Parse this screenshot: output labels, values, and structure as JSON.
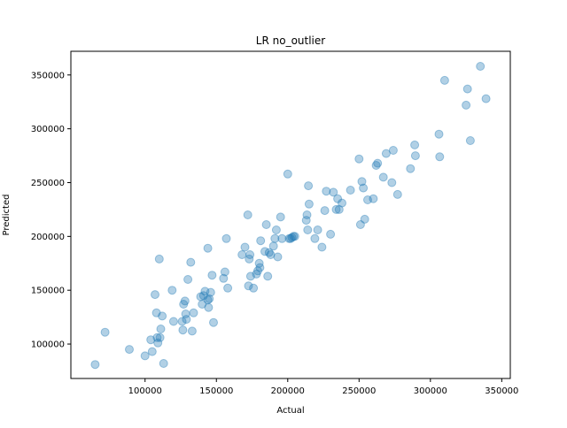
{
  "chart_data": {
    "type": "scatter",
    "title": "LR no_outlier",
    "xlabel": "Actual",
    "ylabel": "Predicted",
    "xlim": [
      48000,
      356000
    ],
    "ylim": [
      68000,
      372000
    ],
    "xticks": [
      100000,
      150000,
      200000,
      250000,
      300000,
      350000
    ],
    "yticks": [
      100000,
      150000,
      200000,
      250000,
      300000,
      350000
    ],
    "xtick_labels": [
      "100000",
      "150000",
      "200000",
      "250000",
      "300000",
      "350000"
    ],
    "ytick_labels": [
      "100000",
      "150000",
      "200000",
      "250000",
      "300000",
      "350000"
    ],
    "grid": false,
    "marker_color": "#1f77b4",
    "marker_alpha": 0.35,
    "points": [
      [
        65000,
        81000
      ],
      [
        72000,
        111000
      ],
      [
        89000,
        95000
      ],
      [
        100000,
        89000
      ],
      [
        104000,
        104000
      ],
      [
        105000,
        93000
      ],
      [
        107000,
        146000
      ],
      [
        108000,
        129000
      ],
      [
        108500,
        106000
      ],
      [
        109000,
        101000
      ],
      [
        110000,
        179000
      ],
      [
        110500,
        106000
      ],
      [
        111000,
        114000
      ],
      [
        112000,
        126000
      ],
      [
        113000,
        82000
      ],
      [
        119000,
        150000
      ],
      [
        120000,
        121000
      ],
      [
        126000,
        121000
      ],
      [
        126500,
        113000
      ],
      [
        127000,
        137000
      ],
      [
        128000,
        140000
      ],
      [
        128500,
        128000
      ],
      [
        129000,
        123000
      ],
      [
        130000,
        160000
      ],
      [
        132000,
        176000
      ],
      [
        133000,
        112000
      ],
      [
        134000,
        129000
      ],
      [
        139000,
        144000
      ],
      [
        140000,
        137000
      ],
      [
        141000,
        145000
      ],
      [
        142000,
        149000
      ],
      [
        144000,
        141000
      ],
      [
        144500,
        134000
      ],
      [
        145000,
        142000
      ],
      [
        144000,
        189000
      ],
      [
        146000,
        148000
      ],
      [
        147000,
        164000
      ],
      [
        148000,
        120000
      ],
      [
        155000,
        161000
      ],
      [
        156000,
        167000
      ],
      [
        157000,
        198000
      ],
      [
        158000,
        152000
      ],
      [
        168000,
        183000
      ],
      [
        170000,
        190000
      ],
      [
        172000,
        220000
      ],
      [
        172500,
        154000
      ],
      [
        173000,
        179000
      ],
      [
        173500,
        183000
      ],
      [
        174000,
        163000
      ],
      [
        176000,
        152000
      ],
      [
        178000,
        165000
      ],
      [
        179000,
        168000
      ],
      [
        180000,
        175000
      ],
      [
        180500,
        171000
      ],
      [
        181000,
        196000
      ],
      [
        184000,
        186000
      ],
      [
        185000,
        211000
      ],
      [
        186000,
        163000
      ],
      [
        187000,
        185000
      ],
      [
        188000,
        183000
      ],
      [
        190000,
        191000
      ],
      [
        191000,
        198000
      ],
      [
        192000,
        206000
      ],
      [
        193000,
        181000
      ],
      [
        195000,
        218000
      ],
      [
        196000,
        198000
      ],
      [
        200000,
        258000
      ],
      [
        201000,
        198000
      ],
      [
        202000,
        198000
      ],
      [
        203000,
        199000
      ],
      [
        204000,
        200000
      ],
      [
        205000,
        200000
      ],
      [
        213000,
        215000
      ],
      [
        213500,
        220000
      ],
      [
        214000,
        206000
      ],
      [
        214500,
        247000
      ],
      [
        215000,
        230000
      ],
      [
        219000,
        198000
      ],
      [
        221000,
        206000
      ],
      [
        224000,
        190000
      ],
      [
        226000,
        224000
      ],
      [
        227000,
        242000
      ],
      [
        230000,
        202000
      ],
      [
        232000,
        241000
      ],
      [
        234000,
        225000
      ],
      [
        235000,
        235000
      ],
      [
        236000,
        225000
      ],
      [
        238000,
        231000
      ],
      [
        244000,
        243000
      ],
      [
        250000,
        272000
      ],
      [
        251000,
        211000
      ],
      [
        252000,
        251000
      ],
      [
        253000,
        245000
      ],
      [
        254000,
        216000
      ],
      [
        256000,
        234000
      ],
      [
        260000,
        235000
      ],
      [
        262000,
        266000
      ],
      [
        263000,
        268000
      ],
      [
        267000,
        255000
      ],
      [
        269000,
        277000
      ],
      [
        273000,
        250000
      ],
      [
        274000,
        280000
      ],
      [
        277000,
        239000
      ],
      [
        286000,
        263000
      ],
      [
        289000,
        285000
      ],
      [
        289500,
        275000
      ],
      [
        306000,
        295000
      ],
      [
        306500,
        274000
      ],
      [
        310000,
        345000
      ],
      [
        325000,
        322000
      ],
      [
        326000,
        337000
      ],
      [
        328000,
        289000
      ],
      [
        335000,
        358000
      ],
      [
        339000,
        328000
      ]
    ]
  }
}
